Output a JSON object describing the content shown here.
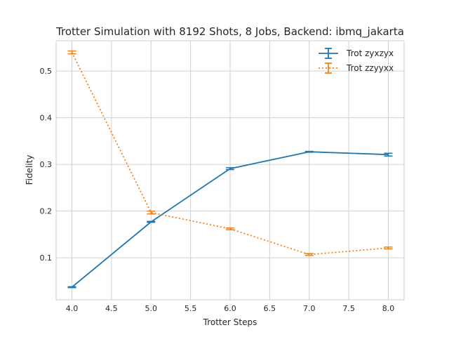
{
  "chart_data": {
    "type": "line",
    "title": "Trotter Simulation with 8192 Shots, 8 Jobs, Backend: ibmq_jakarta",
    "xlabel": "Trotter Steps",
    "ylabel": "Fidelity",
    "xlim": [
      3.8,
      8.2
    ],
    "ylim": [
      0.01,
      0.565
    ],
    "xticks": [
      "4.0",
      "4.5",
      "5.0",
      "5.5",
      "6.0",
      "6.5",
      "7.0",
      "7.5",
      "8.0"
    ],
    "yticks": [
      "0.1",
      "0.2",
      "0.3",
      "0.4",
      "0.5"
    ],
    "grid": true,
    "legend_position": "top-right",
    "error_bars": true,
    "series": [
      {
        "name": "Trot zyxzyx",
        "color": "#1f77b4",
        "linestyle": "solid",
        "x": [
          4,
          5,
          6,
          7,
          8
        ],
        "y": [
          0.037,
          0.177,
          0.291,
          0.327,
          0.321
        ],
        "yerr": [
          0.001,
          0.001,
          0.002,
          0.001,
          0.003
        ]
      },
      {
        "name": "Trot zzyyxx",
        "color": "#ff7f0e",
        "linestyle": "dotted",
        "x": [
          4,
          5,
          6,
          7,
          8
        ],
        "y": [
          0.54,
          0.197,
          0.162,
          0.107,
          0.121
        ],
        "yerr": [
          0.003,
          0.003,
          0.002,
          0.002,
          0.002
        ]
      }
    ]
  }
}
